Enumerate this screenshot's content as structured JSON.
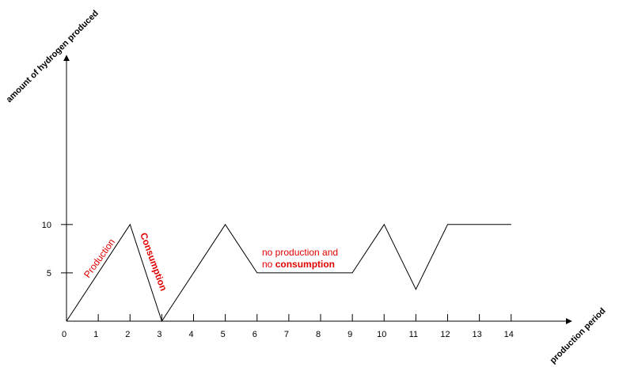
{
  "chart_data": {
    "type": "line",
    "title": "",
    "xlabel": "production period",
    "ylabel": "amount of hydrogen produced",
    "x_ticks": [
      0,
      1,
      2,
      3,
      4,
      5,
      6,
      7,
      8,
      9,
      10,
      11,
      12,
      13,
      14
    ],
    "y_ticks": [
      5,
      10
    ],
    "xlim": [
      0,
      15.9
    ],
    "ylim": [
      0,
      27.5
    ],
    "grid": false,
    "series": [
      {
        "color": "#000000",
        "points": [
          {
            "x": 0,
            "y": 0
          },
          {
            "x": 2,
            "y": 10
          },
          {
            "x": 3,
            "y": 0
          },
          {
            "x": 5,
            "y": 10
          },
          {
            "x": 6,
            "y": 5
          },
          {
            "x": 9,
            "y": 5
          },
          {
            "x": 10,
            "y": 10
          },
          {
            "x": 11,
            "y": 3.3
          },
          {
            "x": 12,
            "y": 10
          },
          {
            "x": 14,
            "y": 10
          }
        ]
      }
    ],
    "annotations": {
      "production": "Production",
      "consumption": "Consumption",
      "steady_line1": "no production and",
      "steady_line2_prefix": "no ",
      "steady_line2_bold": "consumption"
    },
    "annotation_color": "#e00000"
  }
}
